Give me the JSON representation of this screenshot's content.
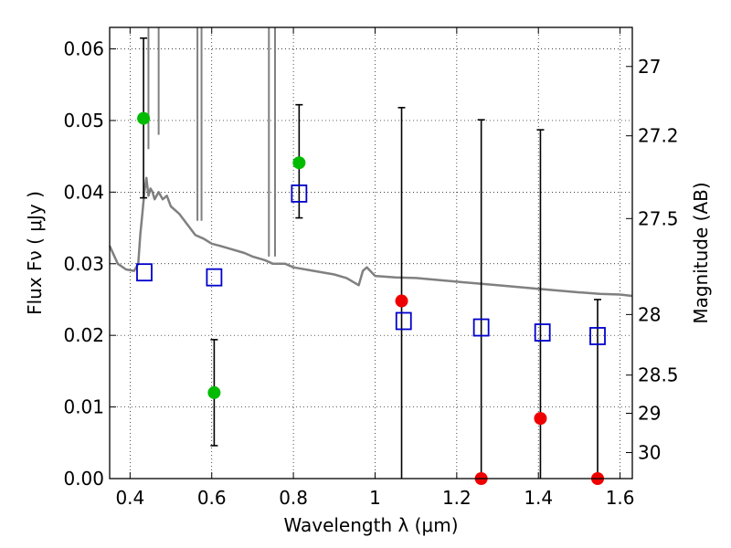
{
  "chart_data": {
    "type": "scatter",
    "xlabel": "Wavelength  λ (μm)",
    "ylabel": "Flux  Fν  ( μJy )",
    "y2label": "Magnitude (AB)",
    "xlim": [
      0.35,
      1.63
    ],
    "ylim": [
      0.0,
      0.063
    ],
    "grid": true,
    "x_ticks": [
      {
        "value": 0.4,
        "label": "0.4"
      },
      {
        "value": 0.6,
        "label": "0.6"
      },
      {
        "value": 0.8,
        "label": "0.8"
      },
      {
        "value": 1.0,
        "label": "1"
      },
      {
        "value": 1.2,
        "label": "1.2"
      },
      {
        "value": 1.4,
        "label": "1.4"
      },
      {
        "value": 1.6,
        "label": "1.6"
      }
    ],
    "y_ticks": [
      {
        "value": 0.0,
        "label": "0.00"
      },
      {
        "value": 0.01,
        "label": "0.01"
      },
      {
        "value": 0.02,
        "label": "0.02"
      },
      {
        "value": 0.03,
        "label": "0.03"
      },
      {
        "value": 0.04,
        "label": "0.04"
      },
      {
        "value": 0.05,
        "label": "0.05"
      },
      {
        "value": 0.06,
        "label": "0.06"
      }
    ],
    "mag_ticks": [
      {
        "value": 27,
        "label": "27"
      },
      {
        "value": 27.2,
        "label": "27.2"
      },
      {
        "value": 27.5,
        "label": "27.5"
      },
      {
        "value": 28,
        "label": "28"
      },
      {
        "value": 28.5,
        "label": "28.5"
      },
      {
        "value": 29,
        "label": "29"
      },
      {
        "value": 30,
        "label": "30"
      }
    ],
    "series": [
      {
        "marker": "filled-circle",
        "color": "#00bb00",
        "points": [
          {
            "x": 0.433,
            "y": 0.0503,
            "err_lo": 0.0392,
            "err_hi": 0.0615
          },
          {
            "x": 0.606,
            "y": 0.012,
            "err_lo": 0.0046,
            "err_hi": 0.0194
          },
          {
            "x": 0.814,
            "y": 0.0441,
            "err_lo": 0.0364,
            "err_hi": 0.0522
          }
        ]
      },
      {
        "marker": "filled-circle",
        "color": "#ee0000",
        "points": [
          {
            "x": 1.065,
            "y": 0.0248,
            "err_lo": 0.0,
            "err_hi": 0.0518
          },
          {
            "x": 1.26,
            "y": 0.0,
            "err_lo": 0.0,
            "err_hi": 0.0501
          },
          {
            "x": 1.405,
            "y": 0.0084,
            "err_lo": 0.0,
            "err_hi": 0.0487
          },
          {
            "x": 1.545,
            "y": 0.0,
            "err_lo": 0.0,
            "err_hi": 0.025
          }
        ]
      },
      {
        "marker": "open-square",
        "color": "#0000cc",
        "points": [
          {
            "x": 0.435,
            "y": 0.0288
          },
          {
            "x": 0.606,
            "y": 0.0281
          },
          {
            "x": 0.814,
            "y": 0.0398
          },
          {
            "x": 1.07,
            "y": 0.022
          },
          {
            "x": 1.26,
            "y": 0.0211
          },
          {
            "x": 1.41,
            "y": 0.0204
          },
          {
            "x": 1.545,
            "y": 0.0199
          }
        ]
      },
      {
        "line": "sed-model",
        "color": "#808080",
        "x": [
          0.35,
          0.37,
          0.39,
          0.41,
          0.42,
          0.425,
          0.43,
          0.435,
          0.44,
          0.445,
          0.45,
          0.455,
          0.46,
          0.465,
          0.47,
          0.48,
          0.49,
          0.5,
          0.52,
          0.54,
          0.56,
          0.58,
          0.6,
          0.62,
          0.65,
          0.68,
          0.7,
          0.73,
          0.75,
          0.78,
          0.8,
          0.85,
          0.9,
          0.93,
          0.96,
          0.97,
          0.98,
          1.0,
          1.05,
          1.1,
          1.2,
          1.3,
          1.4,
          1.5,
          1.55,
          1.6,
          1.63
        ],
        "y": [
          0.0325,
          0.03,
          0.0292,
          0.029,
          0.03,
          0.034,
          0.037,
          0.04,
          0.042,
          0.0395,
          0.0405,
          0.04,
          0.039,
          0.0395,
          0.04,
          0.039,
          0.0395,
          0.038,
          0.037,
          0.0355,
          0.034,
          0.0335,
          0.0328,
          0.0325,
          0.032,
          0.0315,
          0.031,
          0.0305,
          0.03,
          0.03,
          0.0295,
          0.029,
          0.0285,
          0.028,
          0.027,
          0.029,
          0.0295,
          0.0283,
          0.0281,
          0.028,
          0.0275,
          0.027,
          0.0265,
          0.026,
          0.0258,
          0.0257,
          0.0255
        ]
      }
    ]
  }
}
